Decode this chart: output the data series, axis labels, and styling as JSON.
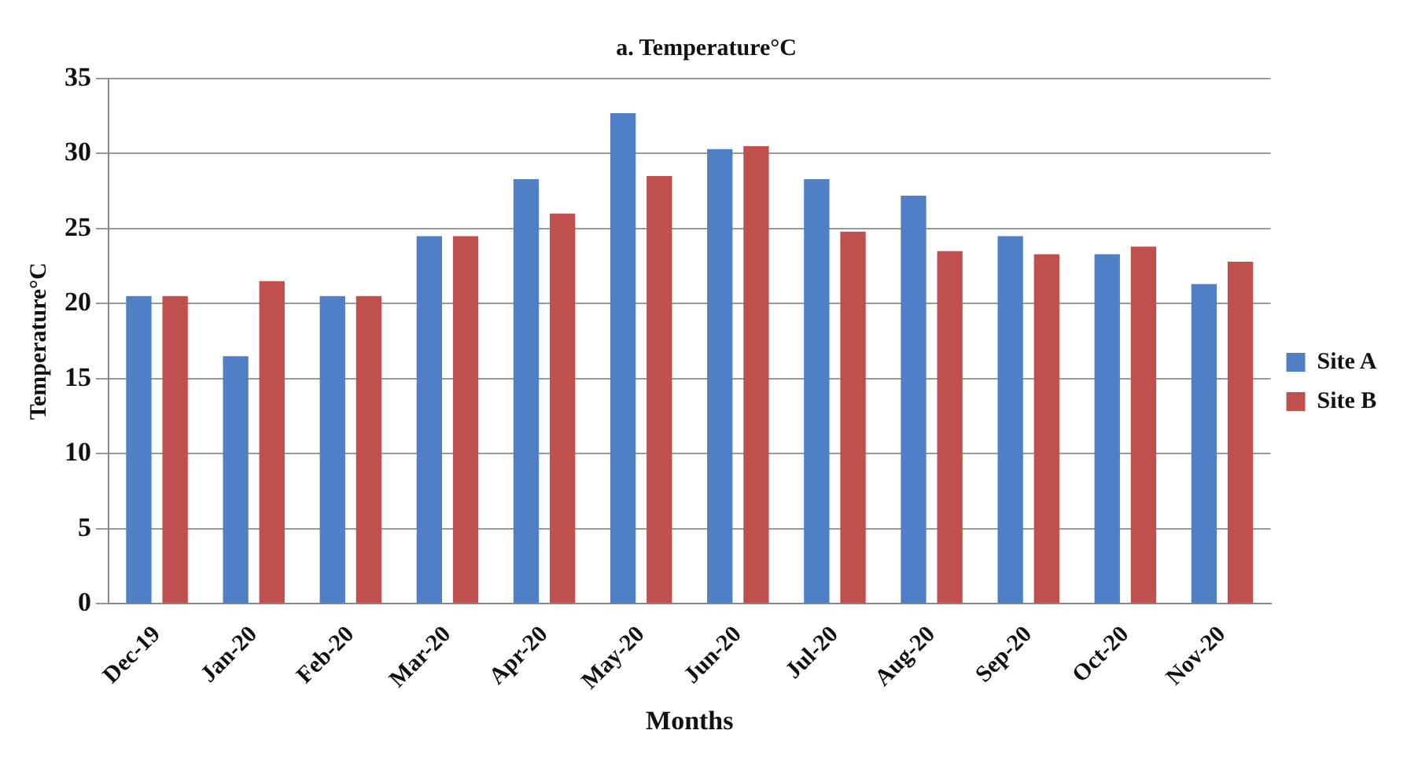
{
  "chart_data": {
    "type": "bar",
    "title": "a. Temperature°C",
    "xlabel": "Months",
    "ylabel": "Temperature°C",
    "categories": [
      "Dec-19",
      "Jan-20",
      "Feb-20",
      "Mar-20",
      "Apr-20",
      "May-20",
      "Jun-20",
      "Jul-20",
      "Aug-20",
      "Sep-20",
      "Oct-20",
      "Nov-20"
    ],
    "series": [
      {
        "name": "Site A",
        "color": "#4f7fc4",
        "values": [
          20.5,
          16.5,
          20.5,
          24.5,
          28.3,
          32.7,
          30.3,
          28.3,
          27.2,
          24.5,
          23.3,
          21.3
        ]
      },
      {
        "name": "Site B",
        "color": "#c0504d",
        "values": [
          20.5,
          21.5,
          20.5,
          24.5,
          26,
          28.5,
          30.5,
          24.8,
          23.5,
          23.3,
          23.8,
          22.8
        ]
      }
    ],
    "ylim": [
      0,
      35
    ],
    "yticks": [
      0,
      5,
      10,
      15,
      20,
      25,
      30,
      35
    ],
    "grid": "y",
    "legend": "right"
  }
}
